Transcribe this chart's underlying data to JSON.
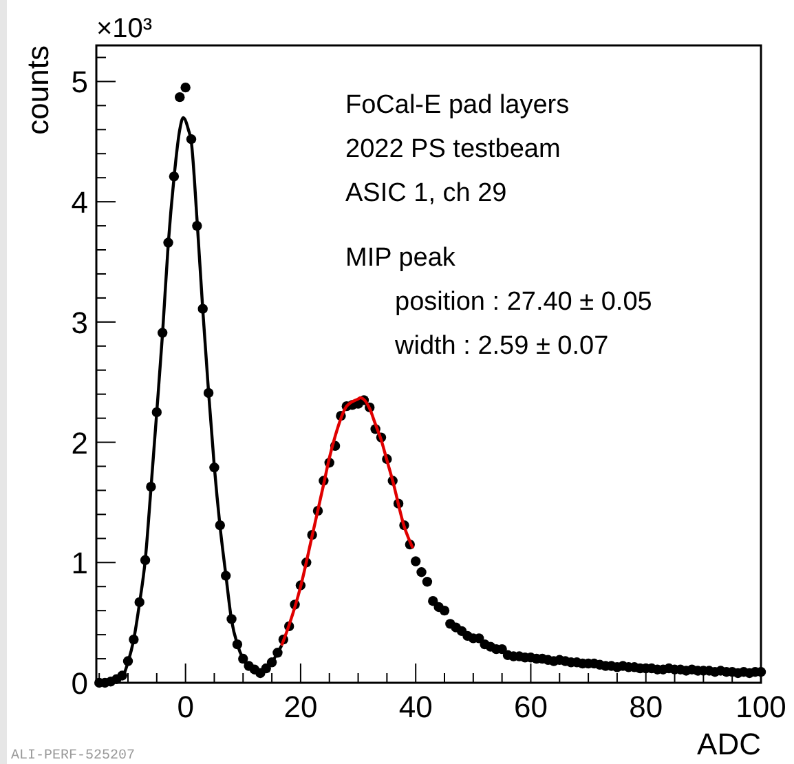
{
  "chart_data": {
    "type": "scatter",
    "ylabel": "counts",
    "xlabel": "ADC",
    "xlim": [
      -15.5,
      100
    ],
    "ylim": [
      0,
      5.3
    ],
    "xticks": [
      {
        "value": -15,
        "label": null
      },
      {
        "value": -10,
        "label": null
      },
      {
        "value": -5,
        "label": null
      },
      0,
      {
        "value": 5,
        "label": null
      },
      {
        "value": 10,
        "label": null
      },
      {
        "value": 15,
        "label": null
      },
      20,
      {
        "value": 25,
        "label": null
      },
      {
        "value": 30,
        "label": null
      },
      {
        "value": 35,
        "label": null
      },
      40,
      {
        "value": 45,
        "label": null
      },
      {
        "value": 50,
        "label": null
      },
      {
        "value": 55,
        "label": null
      },
      60,
      {
        "value": 65,
        "label": null
      },
      {
        "value": 70,
        "label": null
      },
      {
        "value": 75,
        "label": null
      },
      80,
      {
        "value": 85,
        "label": null
      },
      {
        "value": 90,
        "label": null
      },
      {
        "value": 95,
        "label": null
      },
      100
    ],
    "yticks": [
      0,
      {
        "value": 0.2,
        "label": null
      },
      {
        "value": 0.4,
        "label": null
      },
      {
        "value": 0.6,
        "label": null
      },
      {
        "value": 0.8,
        "label": null
      },
      1,
      {
        "value": 1.2,
        "label": null
      },
      {
        "value": 1.4,
        "label": null
      },
      {
        "value": 1.6,
        "label": null
      },
      {
        "value": 1.8,
        "label": null
      },
      2,
      {
        "value": 2.2,
        "label": null
      },
      {
        "value": 2.4,
        "label": null
      },
      {
        "value": 2.6,
        "label": null
      },
      {
        "value": 2.8,
        "label": null
      },
      3,
      {
        "value": 3.2,
        "label": null
      },
      {
        "value": 3.4,
        "label": null
      },
      {
        "value": 3.6,
        "label": null
      },
      {
        "value": 3.8,
        "label": null
      },
      4,
      {
        "value": 4.2,
        "label": null
      },
      {
        "value": 4.4,
        "label": null
      },
      {
        "value": 4.6,
        "label": null
      },
      {
        "value": 4.8,
        "label": null
      },
      5,
      {
        "value": 5.2,
        "label": null
      }
    ],
    "grid": false,
    "marker": "circle",
    "series": [
      {
        "color": "#000000",
        "x": [
          -15,
          -14,
          -13,
          -12,
          -11,
          -10,
          -9,
          -8,
          -7,
          -6,
          -5,
          -4,
          -3,
          -2,
          -1,
          0,
          1,
          2,
          3,
          4,
          5,
          6,
          7,
          8,
          9,
          10,
          11,
          12,
          13,
          14,
          15,
          16,
          17,
          18,
          19,
          20,
          21,
          22,
          23,
          24,
          25,
          26,
          27,
          28,
          29,
          30,
          31,
          32,
          33,
          34,
          35,
          36,
          37,
          38,
          39,
          40,
          41,
          42,
          43,
          44,
          45,
          46,
          47,
          48,
          49,
          50,
          51,
          52,
          53,
          54,
          55,
          56,
          57,
          58,
          59,
          60,
          61,
          62,
          63,
          64,
          65,
          66,
          67,
          68,
          69,
          70,
          71,
          72,
          73,
          74,
          75,
          76,
          77,
          78,
          79,
          80,
          81,
          82,
          83,
          84,
          85,
          86,
          87,
          88,
          89,
          90,
          91,
          92,
          93,
          94,
          95,
          96,
          97,
          98,
          99,
          100
        ],
        "values": [
          0.0,
          0.0,
          0.01,
          0.03,
          0.06,
          0.18,
          0.36,
          0.67,
          1.02,
          1.63,
          2.25,
          2.91,
          3.66,
          4.21,
          4.87,
          4.95,
          4.52,
          3.8,
          3.11,
          2.41,
          1.79,
          1.31,
          0.89,
          0.53,
          0.32,
          0.2,
          0.14,
          0.11,
          0.08,
          0.12,
          0.17,
          0.25,
          0.36,
          0.47,
          0.65,
          0.81,
          1.0,
          1.23,
          1.43,
          1.68,
          1.83,
          1.97,
          2.22,
          2.3,
          2.31,
          2.32,
          2.35,
          2.29,
          2.11,
          2.04,
          1.86,
          1.68,
          1.49,
          1.31,
          1.15,
          1.01,
          0.92,
          0.84,
          0.68,
          0.63,
          0.6,
          0.49,
          0.46,
          0.43,
          0.39,
          0.37,
          0.37,
          0.32,
          0.3,
          0.28,
          0.28,
          0.23,
          0.22,
          0.22,
          0.21,
          0.21,
          0.2,
          0.2,
          0.19,
          0.18,
          0.19,
          0.18,
          0.17,
          0.17,
          0.16,
          0.16,
          0.16,
          0.15,
          0.14,
          0.14,
          0.13,
          0.14,
          0.13,
          0.13,
          0.12,
          0.12,
          0.12,
          0.11,
          0.11,
          0.12,
          0.11,
          0.11,
          0.1,
          0.11,
          0.1,
          0.1,
          0.1,
          0.09,
          0.1,
          0.09,
          0.09,
          0.08,
          0.09,
          0.08,
          0.09,
          0.09
        ]
      },
      {
        "type": "line",
        "color": "#000000",
        "marker": "none",
        "line_style": "solid",
        "x": [
          -15.5,
          -13,
          -11,
          -10,
          -9,
          -8,
          -7,
          -6,
          -5,
          -4,
          -3,
          -2,
          -1,
          -0.4,
          0.5,
          1,
          2,
          3,
          4,
          5,
          6,
          7,
          8,
          9,
          10,
          11,
          12,
          13,
          14,
          15,
          16,
          16.7
        ],
        "values": [
          0.0,
          0.01,
          0.05,
          0.17,
          0.36,
          0.66,
          1.02,
          1.62,
          2.25,
          2.9,
          3.65,
          4.2,
          4.6,
          4.7,
          4.6,
          4.5,
          3.85,
          3.1,
          2.42,
          1.8,
          1.3,
          0.9,
          0.52,
          0.32,
          0.2,
          0.13,
          0.1,
          0.08,
          0.11,
          0.17,
          0.25,
          0.31
        ]
      },
      {
        "type": "line",
        "color": "#e00000",
        "marker": "none",
        "line_style": "solid",
        "x": [
          16.7,
          18,
          20,
          22,
          24,
          25,
          26,
          28,
          30,
          30.4,
          32,
          33,
          34,
          35,
          36,
          38,
          39.5
        ],
        "values": [
          0.31,
          0.48,
          0.8,
          1.22,
          1.65,
          1.87,
          2.05,
          2.3,
          2.36,
          2.37,
          2.28,
          2.15,
          2.02,
          1.85,
          1.68,
          1.3,
          1.12
        ]
      }
    ],
    "annotations": [
      "×10³",
      "FoCal-E pad layers",
      "2022 PS testbeam",
      "ASIC 1, ch 29",
      "MIP peak",
      "position : 27.40 ± 0.05",
      "width : 2.59 ± 0.07",
      "ALI-PERF-525207"
    ]
  }
}
